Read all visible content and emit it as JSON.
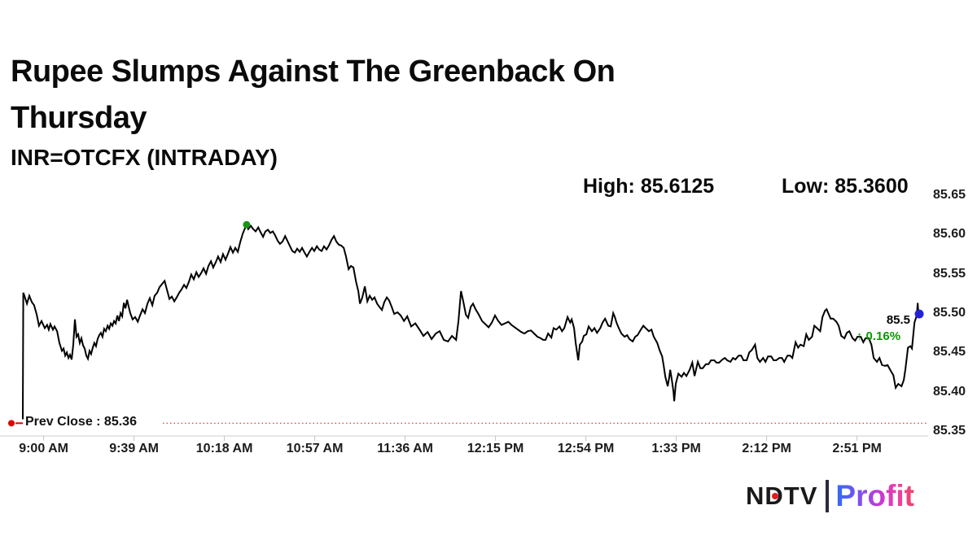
{
  "header": {
    "title": "Rupee Slumps Against The Greenback On Thursday",
    "subtitle": "INR=OTCFX (INTRADAY)",
    "high_label": "High: 85.6125",
    "low_label": "Low: 85.3600"
  },
  "logo": {
    "ndtv_n": "N",
    "ndtv_d": "D",
    "ndtv_tv": "TV",
    "profit": "Profit",
    "red_dot_color": "#e31b23"
  },
  "chart_data": {
    "type": "line",
    "title": "INR=OTCFX (INTRADAY)",
    "x_unit": "minutes after 9:00 AM",
    "x_tick_minutes": [
      0,
      39,
      78,
      117,
      156,
      195,
      234,
      273,
      312,
      351
    ],
    "x_tick_labels": [
      "9:00 AM",
      "9:39 AM",
      "10:18 AM",
      "10:57 AM",
      "11:36 AM",
      "12:15 PM",
      "12:54 PM",
      "1:33 PM",
      "2:12 PM",
      "2:51 PM"
    ],
    "y_ticks": [
      85.65,
      85.6,
      85.55,
      85.5,
      85.45,
      85.4,
      85.35
    ],
    "y_tick_labels": [
      "85.65",
      "85.60",
      "85.55",
      "85.50",
      "85.45",
      "85.40",
      "85.35"
    ],
    "ylim": [
      85.35,
      85.65
    ],
    "grid": false,
    "legend": "none",
    "line_color": "#000000",
    "axis_color": "#cccccc",
    "high": {
      "t": 87.6,
      "value": 85.6125,
      "marker_color": "#169616"
    },
    "low": {
      "value": 85.36
    },
    "prev_close": {
      "value": 85.36,
      "label": "Prev Close : 85.36",
      "line_color": "#c83232",
      "marker_color": "#e00000"
    },
    "last": {
      "t": 377.5,
      "value": 85.499,
      "label": "85.5",
      "change_label": "↑ 0.16%",
      "change_color": "#0a9800",
      "marker_color": "#2121dc"
    },
    "points": [
      [
        -9,
        85.365
      ],
      [
        -8.8,
        85.526
      ],
      [
        -8.3,
        85.522
      ],
      [
        -7.2,
        85.512
      ],
      [
        -6.2,
        85.522
      ],
      [
        -5.1,
        85.514
      ],
      [
        -4.1,
        85.51
      ],
      [
        -3,
        85.498
      ],
      [
        -2,
        85.484
      ],
      [
        -0.9,
        85.49
      ],
      [
        0.5,
        85.481
      ],
      [
        1.5,
        85.485
      ],
      [
        2.2,
        85.479
      ],
      [
        2.9,
        85.486
      ],
      [
        4,
        85.479
      ],
      [
        4.7,
        85.483
      ],
      [
        5.8,
        85.477
      ],
      [
        6.8,
        85.462
      ],
      [
        7.9,
        85.452
      ],
      [
        8.6,
        85.455
      ],
      [
        9.3,
        85.446
      ],
      [
        10,
        85.45
      ],
      [
        10.7,
        85.443
      ],
      [
        11.4,
        85.447
      ],
      [
        12.1,
        85.441
      ],
      [
        12.8,
        85.46
      ],
      [
        13.5,
        85.492
      ],
      [
        14.2,
        85.47
      ],
      [
        14.9,
        85.473
      ],
      [
        15.6,
        85.462
      ],
      [
        16.3,
        85.468
      ],
      [
        17,
        85.459
      ],
      [
        17.7,
        85.455
      ],
      [
        18.4,
        85.446
      ],
      [
        19.1,
        85.442
      ],
      [
        19.8,
        85.452
      ],
      [
        20.5,
        85.448
      ],
      [
        21.2,
        85.456
      ],
      [
        21.9,
        85.462
      ],
      [
        22.6,
        85.458
      ],
      [
        23.3,
        85.467
      ],
      [
        24,
        85.472
      ],
      [
        24.7,
        85.475
      ],
      [
        25.4,
        85.47
      ],
      [
        26.1,
        85.48
      ],
      [
        26.8,
        85.477
      ],
      [
        27.6,
        85.484
      ],
      [
        28.3,
        85.48
      ],
      [
        29,
        85.487
      ],
      [
        29.7,
        85.484
      ],
      [
        30.4,
        85.49
      ],
      [
        31.1,
        85.487
      ],
      [
        31.8,
        85.497
      ],
      [
        32.5,
        85.49
      ],
      [
        33.2,
        85.5
      ],
      [
        33.9,
        85.496
      ],
      [
        34.6,
        85.513
      ],
      [
        35.3,
        85.506
      ],
      [
        36,
        85.517
      ],
      [
        36.7,
        85.508
      ],
      [
        37.4,
        85.5
      ],
      [
        38.4,
        85.492
      ],
      [
        39.5,
        85.495
      ],
      [
        40.6,
        85.489
      ],
      [
        41.6,
        85.497
      ],
      [
        42.7,
        85.505
      ],
      [
        43.7,
        85.5
      ],
      [
        44.8,
        85.512
      ],
      [
        45.8,
        85.519
      ],
      [
        46.9,
        85.51
      ],
      [
        47.9,
        85.522
      ],
      [
        49,
        85.526
      ],
      [
        50,
        85.533
      ],
      [
        51.1,
        85.537
      ],
      [
        52.2,
        85.541
      ],
      [
        53.2,
        85.53
      ],
      [
        54.3,
        85.518
      ],
      [
        55.3,
        85.521
      ],
      [
        56.4,
        85.515
      ],
      [
        57.4,
        85.52
      ],
      [
        58.5,
        85.526
      ],
      [
        59.5,
        85.53
      ],
      [
        60.6,
        85.536
      ],
      [
        61.6,
        85.532
      ],
      [
        62.7,
        85.54
      ],
      [
        63.7,
        85.549
      ],
      [
        64.8,
        85.543
      ],
      [
        65.9,
        85.552
      ],
      [
        66.9,
        85.546
      ],
      [
        68,
        85.551
      ],
      [
        69,
        85.557
      ],
      [
        70.1,
        85.55
      ],
      [
        71.1,
        85.56
      ],
      [
        72.2,
        85.566
      ],
      [
        73.2,
        85.558
      ],
      [
        74.3,
        85.565
      ],
      [
        75.3,
        85.572
      ],
      [
        76.4,
        85.565
      ],
      [
        77.4,
        85.575
      ],
      [
        78.5,
        85.568
      ],
      [
        79.6,
        85.576
      ],
      [
        80.6,
        85.584
      ],
      [
        81.7,
        85.577
      ],
      [
        82.7,
        85.583
      ],
      [
        83.8,
        85.578
      ],
      [
        84.8,
        85.59
      ],
      [
        85.9,
        85.601
      ],
      [
        86.9,
        85.608
      ],
      [
        87.6,
        85.6125
      ],
      [
        88.3,
        85.607
      ],
      [
        89.4,
        85.611
      ],
      [
        90.4,
        85.607
      ],
      [
        91.5,
        85.604
      ],
      [
        92.6,
        85.609
      ],
      [
        93.6,
        85.603
      ],
      [
        94.7,
        85.597
      ],
      [
        95.7,
        85.604
      ],
      [
        96.8,
        85.606
      ],
      [
        97.8,
        85.602
      ],
      [
        98.9,
        85.604
      ],
      [
        99.9,
        85.599
      ],
      [
        101,
        85.592
      ],
      [
        102,
        85.588
      ],
      [
        103.1,
        85.591
      ],
      [
        104.2,
        85.598
      ],
      [
        105.2,
        85.592
      ],
      [
        106.3,
        85.585
      ],
      [
        107.3,
        85.579
      ],
      [
        108.4,
        85.577
      ],
      [
        109.4,
        85.582
      ],
      [
        110.5,
        85.578
      ],
      [
        111.5,
        85.583
      ],
      [
        112.6,
        85.577
      ],
      [
        113.6,
        85.572
      ],
      [
        114.7,
        85.578
      ],
      [
        115.8,
        85.583
      ],
      [
        116.8,
        85.579
      ],
      [
        117.9,
        85.585
      ],
      [
        118.9,
        85.581
      ],
      [
        120,
        85.579
      ],
      [
        121,
        85.585
      ],
      [
        122.1,
        85.581
      ],
      [
        123.1,
        85.586
      ],
      [
        124.2,
        85.593
      ],
      [
        125.3,
        85.598
      ],
      [
        126.3,
        85.591
      ],
      [
        127.4,
        85.587
      ],
      [
        128.4,
        85.586
      ],
      [
        129.5,
        85.583
      ],
      [
        130.5,
        85.572
      ],
      [
        131.6,
        85.556
      ],
      [
        132.6,
        85.56
      ],
      [
        133.7,
        85.558
      ],
      [
        134.8,
        85.54
      ],
      [
        135.8,
        85.528
      ],
      [
        136.5,
        85.512
      ],
      [
        137.5,
        85.52
      ],
      [
        138.6,
        85.534
      ],
      [
        139.7,
        85.515
      ],
      [
        140.7,
        85.522
      ],
      [
        141.8,
        85.517
      ],
      [
        142.8,
        85.52
      ],
      [
        143.9,
        85.512
      ],
      [
        144.9,
        85.508
      ],
      [
        146,
        85.504
      ],
      [
        147,
        85.514
      ],
      [
        148.1,
        85.52
      ],
      [
        149.1,
        85.516
      ],
      [
        150.2,
        85.508
      ],
      [
        151.3,
        85.499
      ],
      [
        152.7,
        85.501
      ],
      [
        154.1,
        85.497
      ],
      [
        155.5,
        85.49
      ],
      [
        156.9,
        85.496
      ],
      [
        158.6,
        85.483
      ],
      [
        160.4,
        85.487
      ],
      [
        162.2,
        85.479
      ],
      [
        163.9,
        85.471
      ],
      [
        165.7,
        85.476
      ],
      [
        167.4,
        85.467
      ],
      [
        169.2,
        85.474
      ],
      [
        170.9,
        85.477
      ],
      [
        172.7,
        85.466
      ],
      [
        174.5,
        85.464
      ],
      [
        176.2,
        85.471
      ],
      [
        178,
        85.466
      ],
      [
        179,
        85.49
      ],
      [
        180.1,
        85.528
      ],
      [
        181.1,
        85.515
      ],
      [
        182.2,
        85.498
      ],
      [
        183.2,
        85.494
      ],
      [
        184.3,
        85.508
      ],
      [
        185.3,
        85.512
      ],
      [
        186.4,
        85.505
      ],
      [
        187.8,
        85.498
      ],
      [
        189.2,
        85.49
      ],
      [
        190.6,
        85.486
      ],
      [
        192,
        85.482
      ],
      [
        193.4,
        85.488
      ],
      [
        194.8,
        85.497
      ],
      [
        196.2,
        85.49
      ],
      [
        197.6,
        85.485
      ],
      [
        199.1,
        85.487
      ],
      [
        200.5,
        85.489
      ],
      [
        201.9,
        85.485
      ],
      [
        203.3,
        85.482
      ],
      [
        204.7,
        85.479
      ],
      [
        206.1,
        85.476
      ],
      [
        207.5,
        85.474
      ],
      [
        208.9,
        85.477
      ],
      [
        210.3,
        85.478
      ],
      [
        211.7,
        85.474
      ],
      [
        213.1,
        85.47
      ],
      [
        214.5,
        85.468
      ],
      [
        215.6,
        85.466
      ],
      [
        216.6,
        85.466
      ],
      [
        217.7,
        85.474
      ],
      [
        219.1,
        85.469
      ],
      [
        220.1,
        85.481
      ],
      [
        221.2,
        85.479
      ],
      [
        222.6,
        85.483
      ],
      [
        223.7,
        85.477
      ],
      [
        224.7,
        85.481
      ],
      [
        226.1,
        85.495
      ],
      [
        227.2,
        85.488
      ],
      [
        227.9,
        85.492
      ],
      [
        228.9,
        85.481
      ],
      [
        229.6,
        85.462
      ],
      [
        230.7,
        85.44
      ],
      [
        231.4,
        85.46
      ],
      [
        232.4,
        85.464
      ],
      [
        233.1,
        85.471
      ],
      [
        234.2,
        85.473
      ],
      [
        235.2,
        85.483
      ],
      [
        236.6,
        85.477
      ],
      [
        237.7,
        85.481
      ],
      [
        238.8,
        85.475
      ],
      [
        240.2,
        85.481
      ],
      [
        241.2,
        85.488
      ],
      [
        242.3,
        85.493
      ],
      [
        243.7,
        85.484
      ],
      [
        244.7,
        85.483
      ],
      [
        245.8,
        85.5
      ],
      [
        246.5,
        85.495
      ],
      [
        247.2,
        85.488
      ],
      [
        248.2,
        85.481
      ],
      [
        249.3,
        85.474
      ],
      [
        250.7,
        85.47
      ],
      [
        251.8,
        85.472
      ],
      [
        252.8,
        85.467
      ],
      [
        254.2,
        85.464
      ],
      [
        255.3,
        85.47
      ],
      [
        256.3,
        85.472
      ],
      [
        257.7,
        85.479
      ],
      [
        258.8,
        85.484
      ],
      [
        259.8,
        85.481
      ],
      [
        261.2,
        85.477
      ],
      [
        262.3,
        85.479
      ],
      [
        263.3,
        85.47
      ],
      [
        264.8,
        85.462
      ],
      [
        265.8,
        85.453
      ],
      [
        266.9,
        85.445
      ],
      [
        267.6,
        85.433
      ],
      [
        268.3,
        85.419
      ],
      [
        269.3,
        85.407
      ],
      [
        270,
        85.419
      ],
      [
        270.4,
        85.428
      ],
      [
        271.1,
        85.415
      ],
      [
        271.8,
        85.4
      ],
      [
        272.1,
        85.388
      ],
      [
        272.8,
        85.41
      ],
      [
        273.9,
        85.423
      ],
      [
        275.3,
        85.419
      ],
      [
        276.3,
        85.424
      ],
      [
        277.4,
        85.42
      ],
      [
        278.8,
        85.428
      ],
      [
        279.9,
        85.437
      ],
      [
        280.9,
        85.42
      ],
      [
        282.3,
        85.438
      ],
      [
        283.4,
        85.43
      ],
      [
        284.4,
        85.43
      ],
      [
        285.8,
        85.435
      ],
      [
        286.9,
        85.435
      ],
      [
        288,
        85.44
      ],
      [
        289.4,
        85.44
      ],
      [
        290.4,
        85.437
      ],
      [
        291.5,
        85.437
      ],
      [
        292.9,
        85.441
      ],
      [
        294,
        85.443
      ],
      [
        295,
        85.44
      ],
      [
        296.4,
        85.438
      ],
      [
        297.5,
        85.443
      ],
      [
        298.5,
        85.441
      ],
      [
        299.9,
        85.446
      ],
      [
        301,
        85.446
      ],
      [
        302,
        85.44
      ],
      [
        303.4,
        85.44
      ],
      [
        304.5,
        85.45
      ],
      [
        305.6,
        85.453
      ],
      [
        307,
        85.46
      ],
      [
        308,
        85.443
      ],
      [
        309.1,
        85.438
      ],
      [
        310.5,
        85.443
      ],
      [
        311.5,
        85.438
      ],
      [
        312.6,
        85.445
      ],
      [
        314,
        85.445
      ],
      [
        315,
        85.44
      ],
      [
        316.1,
        85.44
      ],
      [
        317.5,
        85.443
      ],
      [
        318.6,
        85.443
      ],
      [
        319.6,
        85.438
      ],
      [
        321,
        85.446
      ],
      [
        322.1,
        85.446
      ],
      [
        323.1,
        85.443
      ],
      [
        324.5,
        85.463
      ],
      [
        325.6,
        85.456
      ],
      [
        326.6,
        85.46
      ],
      [
        328,
        85.458
      ],
      [
        329.1,
        85.473
      ],
      [
        330.2,
        85.466
      ],
      [
        331.6,
        85.47
      ],
      [
        332.6,
        85.484
      ],
      [
        333.7,
        85.481
      ],
      [
        335.1,
        85.477
      ],
      [
        336.1,
        85.495
      ],
      [
        337.2,
        85.503
      ],
      [
        337.9,
        85.505
      ],
      [
        338.6,
        85.5
      ],
      [
        339.6,
        85.493
      ],
      [
        340.7,
        85.493
      ],
      [
        342.1,
        85.489
      ],
      [
        343.1,
        85.484
      ],
      [
        344.2,
        85.471
      ],
      [
        345.6,
        85.468
      ],
      [
        346.6,
        85.475
      ],
      [
        347.7,
        85.477
      ],
      [
        349.1,
        85.468
      ],
      [
        350.2,
        85.465
      ],
      [
        351.2,
        85.47
      ],
      [
        352.6,
        85.47
      ],
      [
        353.7,
        85.463
      ],
      [
        354.7,
        85.468
      ],
      [
        356.1,
        85.468
      ],
      [
        357.2,
        85.46
      ],
      [
        358.2,
        85.443
      ],
      [
        359.6,
        85.438
      ],
      [
        360.7,
        85.443
      ],
      [
        361.8,
        85.434
      ],
      [
        363.2,
        85.433
      ],
      [
        364.2,
        85.434
      ],
      [
        365.3,
        85.428
      ],
      [
        366.7,
        85.421
      ],
      [
        367.7,
        85.405
      ],
      [
        368.8,
        85.41
      ],
      [
        370.2,
        85.407
      ],
      [
        371.2,
        85.415
      ],
      [
        371.9,
        85.429
      ],
      [
        373,
        85.456
      ],
      [
        374,
        85.458
      ],
      [
        374.7,
        85.455
      ],
      [
        375.8,
        85.488
      ],
      [
        376.8,
        85.497
      ],
      [
        377.2,
        85.513
      ],
      [
        377.5,
        85.499
      ]
    ]
  }
}
